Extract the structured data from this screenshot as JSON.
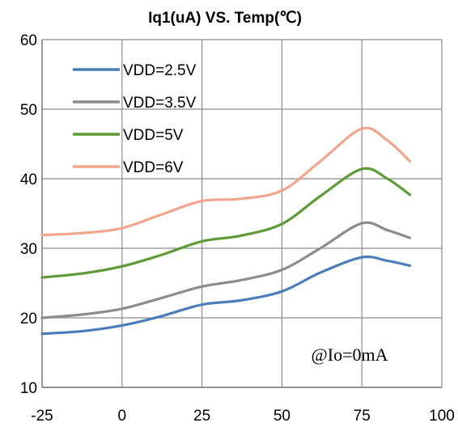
{
  "chart_data": {
    "type": "line",
    "title": "Iq1(uA) VS. Temp(℃)",
    "xlabel": "",
    "ylabel": "",
    "xlim": [
      -25,
      100
    ],
    "ylim": [
      10,
      60
    ],
    "xticks": [
      -25,
      0,
      25,
      50,
      75,
      100
    ],
    "yticks": [
      10,
      20,
      30,
      40,
      50,
      60
    ],
    "grid": true,
    "legend_position": "top-left",
    "annotation": "@Io=0mA",
    "series": [
      {
        "name": "VDD=2.5V",
        "color": "#4a7ebb",
        "x": [
          -25,
          -12,
          0,
          12,
          25,
          37,
          50,
          62,
          75,
          83,
          90
        ],
        "y": [
          17.7,
          18.1,
          18.9,
          20.2,
          21.9,
          22.5,
          23.8,
          26.5,
          28.7,
          28.2,
          27.5
        ]
      },
      {
        "name": "VDD=3.5V",
        "color": "#8c8c8c",
        "x": [
          -25,
          -12,
          0,
          12,
          25,
          37,
          50,
          62,
          75,
          83,
          90
        ],
        "y": [
          20.0,
          20.5,
          21.3,
          22.8,
          24.5,
          25.4,
          26.9,
          30.0,
          33.6,
          32.6,
          31.5
        ]
      },
      {
        "name": "VDD=5V",
        "color": "#5e9a35",
        "x": [
          -25,
          -12,
          0,
          12,
          25,
          37,
          50,
          62,
          75,
          83,
          90
        ],
        "y": [
          25.8,
          26.4,
          27.4,
          29.0,
          31.0,
          31.8,
          33.5,
          37.5,
          41.4,
          40.0,
          37.7
        ]
      },
      {
        "name": "VDD=6V",
        "color": "#f0a58c",
        "x": [
          -25,
          -12,
          0,
          12,
          25,
          37,
          50,
          62,
          75,
          83,
          90
        ],
        "y": [
          31.9,
          32.2,
          32.9,
          34.8,
          36.8,
          37.1,
          38.3,
          42.5,
          47.2,
          45.5,
          42.5
        ]
      }
    ]
  }
}
